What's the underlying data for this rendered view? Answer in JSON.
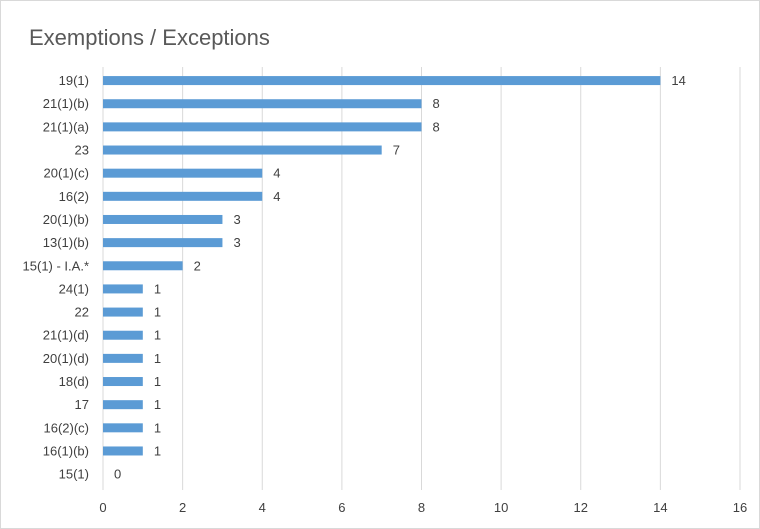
{
  "chart_data": {
    "type": "bar",
    "orientation": "horizontal",
    "title": "Exemptions / Exceptions",
    "xlabel": "",
    "ylabel": "",
    "categories": [
      "19(1)",
      "21(1)(b)",
      "21(1)(a)",
      "23",
      "20(1)(c)",
      "16(2)",
      "20(1)(b)",
      "13(1)(b)",
      "15(1) - I.A.*",
      "24(1)",
      "22",
      "21(1)(d)",
      "20(1)(d)",
      "18(d)",
      "17",
      "16(2)(c)",
      "16(1)(b)",
      "15(1)"
    ],
    "values": [
      14,
      8,
      8,
      7,
      4,
      4,
      3,
      3,
      2,
      1,
      1,
      1,
      1,
      1,
      1,
      1,
      1,
      0
    ],
    "xlim": [
      0,
      16
    ],
    "xticks": [
      "0",
      "2",
      "4",
      "6",
      "8",
      "10",
      "12",
      "14",
      "16"
    ],
    "grid": true,
    "bar_color": "#5b9bd5",
    "gridline_color": "#d9d9d9",
    "legend": "none"
  }
}
